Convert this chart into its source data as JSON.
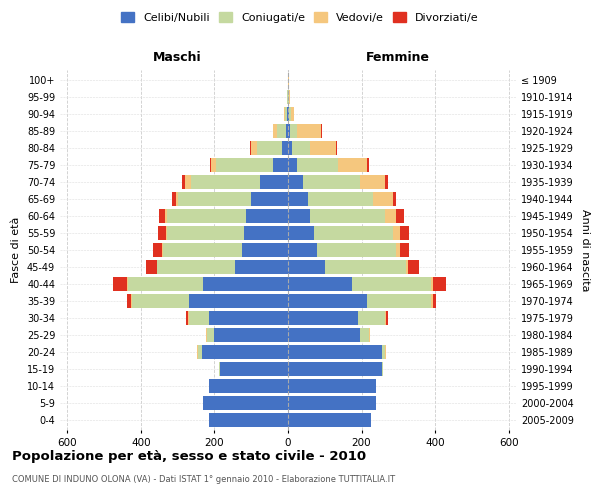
{
  "age_groups": [
    "0-4",
    "5-9",
    "10-14",
    "15-19",
    "20-24",
    "25-29",
    "30-34",
    "35-39",
    "40-44",
    "45-49",
    "50-54",
    "55-59",
    "60-64",
    "65-69",
    "70-74",
    "75-79",
    "80-84",
    "85-89",
    "90-94",
    "95-99",
    "100+"
  ],
  "birth_years": [
    "2005-2009",
    "2000-2004",
    "1995-1999",
    "1990-1994",
    "1985-1989",
    "1980-1984",
    "1975-1979",
    "1970-1974",
    "1965-1969",
    "1960-1964",
    "1955-1959",
    "1950-1954",
    "1945-1949",
    "1940-1944",
    "1935-1939",
    "1930-1934",
    "1925-1929",
    "1920-1924",
    "1915-1919",
    "1910-1914",
    "≤ 1909"
  ],
  "maschi": {
    "celibi": [
      215,
      230,
      215,
      185,
      235,
      200,
      215,
      270,
      230,
      145,
      125,
      120,
      115,
      100,
      75,
      40,
      15,
      5,
      3,
      1,
      1
    ],
    "coniugati": [
      0,
      0,
      0,
      2,
      10,
      20,
      55,
      155,
      205,
      210,
      215,
      210,
      215,
      200,
      190,
      155,
      70,
      25,
      5,
      1,
      0
    ],
    "vedovi": [
      0,
      0,
      0,
      0,
      2,
      2,
      2,
      2,
      2,
      2,
      3,
      3,
      5,
      5,
      15,
      15,
      15,
      10,
      2,
      0,
      0
    ],
    "divorziati": [
      0,
      0,
      0,
      0,
      0,
      2,
      5,
      10,
      40,
      30,
      25,
      20,
      15,
      10,
      8,
      3,
      3,
      2,
      0,
      0,
      0
    ]
  },
  "femmine": {
    "nubili": [
      225,
      240,
      240,
      255,
      255,
      195,
      190,
      215,
      175,
      100,
      80,
      70,
      60,
      55,
      40,
      25,
      10,
      5,
      2,
      1,
      1
    ],
    "coniugate": [
      0,
      0,
      0,
      3,
      10,
      25,
      75,
      175,
      215,
      220,
      215,
      215,
      205,
      175,
      155,
      110,
      50,
      20,
      5,
      1,
      0
    ],
    "vedove": [
      0,
      0,
      0,
      0,
      2,
      2,
      2,
      3,
      5,
      5,
      10,
      20,
      30,
      55,
      70,
      80,
      70,
      65,
      10,
      3,
      2
    ],
    "divorziate": [
      0,
      0,
      0,
      0,
      0,
      2,
      5,
      10,
      35,
      30,
      25,
      25,
      20,
      10,
      8,
      5,
      3,
      2,
      0,
      0,
      0
    ]
  },
  "colors": {
    "celibi": "#4472C4",
    "coniugati": "#C5D9A0",
    "vedovi": "#F5C77E",
    "divorziati": "#E03020"
  },
  "xlim": 620,
  "title": "Popolazione per età, sesso e stato civile - 2010",
  "subtitle": "COMUNE DI INDUNO OLONA (VA) - Dati ISTAT 1° gennaio 2010 - Elaborazione TUTTITALIA.IT",
  "ylabel_left": "Fasce di età",
  "ylabel_right": "Anni di nascita",
  "xlabel_left": "Maschi",
  "xlabel_right": "Femmine"
}
